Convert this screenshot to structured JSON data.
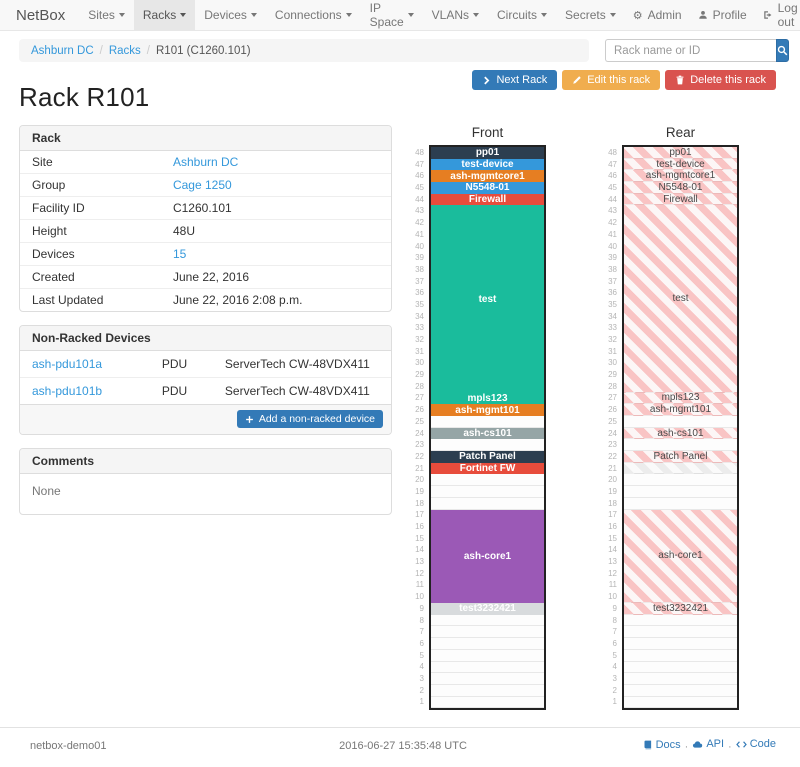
{
  "navbar": {
    "brand": "NetBox",
    "items": [
      {
        "label": "Sites"
      },
      {
        "label": "Racks",
        "active": true
      },
      {
        "label": "Devices"
      },
      {
        "label": "Connections"
      },
      {
        "label": "IP Space"
      },
      {
        "label": "VLANs"
      },
      {
        "label": "Circuits"
      },
      {
        "label": "Secrets"
      }
    ],
    "right_items": [
      {
        "label": "Admin",
        "icon": "gear-icon"
      },
      {
        "label": "Profile",
        "icon": "user-icon"
      },
      {
        "label": "Log out",
        "icon": "logout-icon"
      }
    ]
  },
  "breadcrumb": [
    {
      "label": "Ashburn DC",
      "link": true
    },
    {
      "label": "Racks",
      "link": true
    },
    {
      "label": "R101 (C1260.101)",
      "link": false
    }
  ],
  "search": {
    "placeholder": "Rack name or ID",
    "icon": "search-icon"
  },
  "page": {
    "title": "Rack R101"
  },
  "actions": {
    "next": {
      "label": "Next Rack",
      "icon": "chevron-right-icon",
      "color": "#337ab7"
    },
    "edit": {
      "label": "Edit this rack",
      "icon": "pencil-icon",
      "color": "#f0ad4e"
    },
    "delete": {
      "label": "Delete this rack",
      "icon": "trash-icon",
      "color": "#d9534f"
    }
  },
  "rack_panel": {
    "title": "Rack",
    "rows": [
      {
        "label": "Site",
        "value": "Ashburn DC",
        "link": true
      },
      {
        "label": "Group",
        "value": "Cage 1250",
        "link": true
      },
      {
        "label": "Facility ID",
        "value": "C1260.101",
        "link": false
      },
      {
        "label": "Height",
        "value": "48U",
        "link": false
      },
      {
        "label": "Devices",
        "value": "15",
        "link": true
      },
      {
        "label": "Created",
        "value": "June 22, 2016",
        "link": false
      },
      {
        "label": "Last Updated",
        "value": "June 22, 2016 2:08 p.m.",
        "link": false
      }
    ]
  },
  "non_racked": {
    "title": "Non-Racked Devices",
    "rows": [
      {
        "name": "ash-pdu101a",
        "role": "PDU",
        "model": "ServerTech CW-48VDX411"
      },
      {
        "name": "ash-pdu101b",
        "role": "PDU",
        "model": "ServerTech CW-48VDX411"
      }
    ],
    "add_button": {
      "label": "Add a non-racked device",
      "icon": "plus-icon"
    }
  },
  "comments": {
    "title": "Comments",
    "body": "None"
  },
  "elevations": {
    "front_title": "Front",
    "rear_title": "Rear",
    "units_total": 48,
    "slots": [
      {
        "label": "pp01",
        "units": 1,
        "color": "#2c3e50"
      },
      {
        "label": "test-device",
        "units": 1,
        "color": "#3498db"
      },
      {
        "label": "ash-mgmtcore1",
        "units": 1,
        "color": "#e67e22"
      },
      {
        "label": "N5548-01",
        "units": 1,
        "color": "#3498db"
      },
      {
        "label": "Firewall",
        "units": 1,
        "color": "#e74c3c"
      },
      {
        "label": "test",
        "units": 16,
        "color": "#1abc9c"
      },
      {
        "label": "mpls123",
        "units": 1,
        "color": "#1abc9c"
      },
      {
        "label": "ash-mgmt101",
        "units": 1,
        "color": "#e67e22"
      },
      {
        "empty": true,
        "units": 1
      },
      {
        "label": "ash-cs101",
        "units": 1,
        "color": "#95a5a6"
      },
      {
        "empty": true,
        "units": 1
      },
      {
        "label": "Patch Panel",
        "units": 1,
        "color": "#2c3e50"
      },
      {
        "label": "Fortinet FW",
        "units": 1,
        "color": "#e74c3c",
        "rear_hidden": true
      },
      {
        "empty": true,
        "units": 3
      },
      {
        "label": "ash-core1",
        "units": 8,
        "color": "#9b59b6"
      },
      {
        "label": "test3232421",
        "units": 1,
        "color": "#d8dbdd",
        "label_color": "#ffffff"
      },
      {
        "empty": true,
        "units": 8
      }
    ]
  },
  "footer": {
    "hostname": "netbox-demo01",
    "timestamp": "2016-06-27 15:35:48 UTC",
    "links": [
      {
        "label": "Docs",
        "icon": "book-icon"
      },
      {
        "label": "API",
        "icon": "cloud-icon"
      },
      {
        "label": "Code",
        "icon": "code-icon"
      }
    ]
  }
}
